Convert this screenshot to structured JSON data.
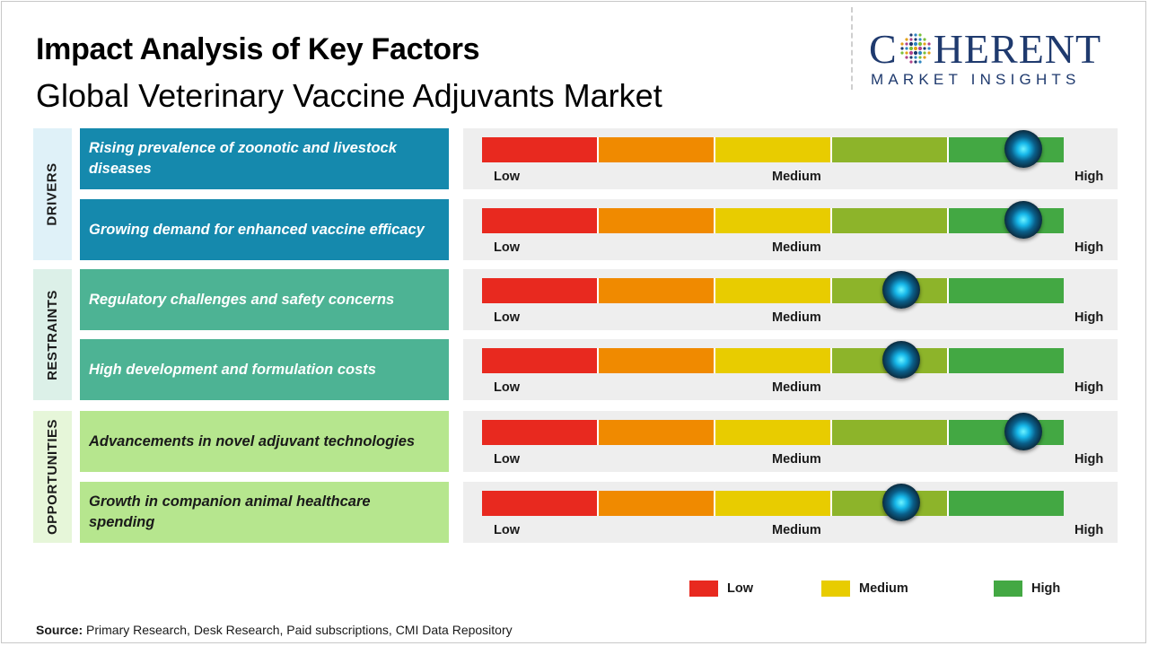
{
  "header": {
    "title": "Impact Analysis of Key Factors",
    "subtitle": "Global Veterinary Vaccine Adjuvants Market"
  },
  "logo": {
    "main_prefix": "C",
    "main_suffix": "HERENT",
    "sub": "MARKET INSIGHTS"
  },
  "colors": {
    "drivers_label_bg": "#dff1f8",
    "drivers_factor_bg": "#1589ad",
    "restraints_label_bg": "#dcf0e8",
    "restraints_factor_bg": "#4db394",
    "opportunities_label_bg": "#e6f6d9",
    "opportunities_factor_bg": "#b6e68e",
    "scale": [
      "#e8291f",
      "#f08a00",
      "#e8cc00",
      "#8db42a",
      "#43a843"
    ]
  },
  "chart_data": {
    "type": "table",
    "scale_labels": {
      "low": "Low",
      "medium": "Medium",
      "high": "High"
    },
    "scale_range": [
      0,
      1
    ],
    "categories": [
      {
        "name": "DRIVERS",
        "factors": [
          {
            "label": "Rising prevalence of zoonotic and livestock diseases",
            "impact": 0.93
          },
          {
            "label": "Growing demand for enhanced vaccine efficacy",
            "impact": 0.93
          }
        ]
      },
      {
        "name": "RESTRAINTS",
        "factors": [
          {
            "label": "Regulatory challenges and safety concerns",
            "impact": 0.72
          },
          {
            "label": "High development and formulation costs",
            "impact": 0.72
          }
        ]
      },
      {
        "name": "OPPORTUNITIES",
        "factors": [
          {
            "label": "Advancements in novel adjuvant technologies",
            "impact": 0.93
          },
          {
            "label": "Growth in companion animal healthcare spending",
            "impact": 0.72
          }
        ]
      }
    ],
    "legend": [
      {
        "label": "Low",
        "color": "#e8291f"
      },
      {
        "label": "Medium",
        "color": "#e8cc00"
      },
      {
        "label": "High",
        "color": "#43a843"
      }
    ],
    "legend_placement": "bottom-right"
  },
  "footer": {
    "source_label": "Source:",
    "source_text": " Primary Research, Desk Research, Paid subscriptions, CMI Data Repository"
  }
}
